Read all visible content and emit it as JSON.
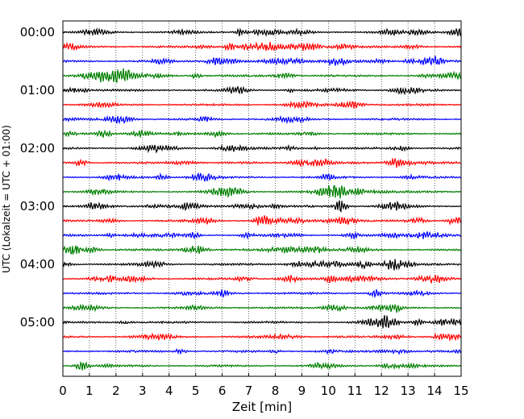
{
  "chart_data": {
    "type": "line",
    "title": "",
    "xlabel": "Zeit  [min]",
    "ylabel": "UTC (Lokalzeit = UTC + 01:00)",
    "xlim": [
      0,
      15
    ],
    "x_ticks": [
      0,
      1,
      2,
      3,
      4,
      5,
      6,
      7,
      8,
      9,
      10,
      11,
      12,
      13,
      14,
      15
    ],
    "x_tick_labels": [
      "0",
      "1",
      "2",
      "3",
      "4",
      "5",
      "6",
      "7",
      "8",
      "9",
      "10",
      "11",
      "12",
      "13",
      "14",
      "15"
    ],
    "y_tick_labels": [
      "00:00",
      "01:00",
      "02:00",
      "03:00",
      "04:00",
      "05:00"
    ],
    "minutes_per_trace": 15,
    "trace_count": 24,
    "trace_start_times": [
      "00:00",
      "00:15",
      "00:30",
      "00:45",
      "01:00",
      "01:15",
      "01:30",
      "01:45",
      "02:00",
      "02:15",
      "02:30",
      "02:45",
      "03:00",
      "03:15",
      "03:30",
      "03:45",
      "04:00",
      "04:15",
      "04:30",
      "04:45",
      "05:00",
      "05:15",
      "05:30",
      "05:45"
    ],
    "trace_colors": [
      "#000000",
      "#ff0000",
      "#0000ff",
      "#007f00"
    ],
    "x_grid": "dotted vertical lines at each minute"
  }
}
